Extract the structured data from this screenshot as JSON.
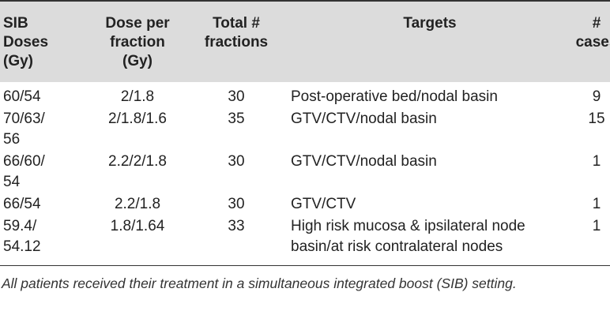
{
  "table": {
    "headers": {
      "sib_doses": [
        "SIB",
        "Doses",
        "(Gy)"
      ],
      "dose_per_fraction": [
        "Dose per",
        "fraction",
        "(Gy)"
      ],
      "total_fractions": [
        "Total #",
        "fractions"
      ],
      "targets": [
        "Targets"
      ],
      "cases": [
        "#",
        "cases"
      ]
    },
    "rows": [
      {
        "sib_doses": [
          "60/54"
        ],
        "dose_per_fraction": "2/1.8",
        "total_fractions": "30",
        "targets": [
          "Post-operative bed/nodal basin"
        ],
        "cases": "9"
      },
      {
        "sib_doses": [
          "70/63/",
          "56"
        ],
        "dose_per_fraction": "2/1.8/1.6",
        "total_fractions": "35",
        "targets": [
          "GTV/CTV/nodal basin"
        ],
        "cases": "15"
      },
      {
        "sib_doses": [
          "66/60/",
          "54"
        ],
        "dose_per_fraction": "2.2/2/1.8",
        "total_fractions": "30",
        "targets": [
          "GTV/CTV/nodal basin"
        ],
        "cases": "1"
      },
      {
        "sib_doses": [
          "66/54"
        ],
        "dose_per_fraction": "2.2/1.8",
        "total_fractions": "30",
        "targets": [
          "GTV/CTV"
        ],
        "cases": "1"
      },
      {
        "sib_doses": [
          "59.4/",
          "54.12"
        ],
        "dose_per_fraction": "1.8/1.64",
        "total_fractions": "33",
        "targets": [
          "High risk mucosa & ipsilateral node",
          "basin/at risk contralateral nodes"
        ],
        "cases": "1"
      }
    ],
    "footnote": "All patients received their treatment in a simultaneous integrated boost (SIB) setting."
  }
}
